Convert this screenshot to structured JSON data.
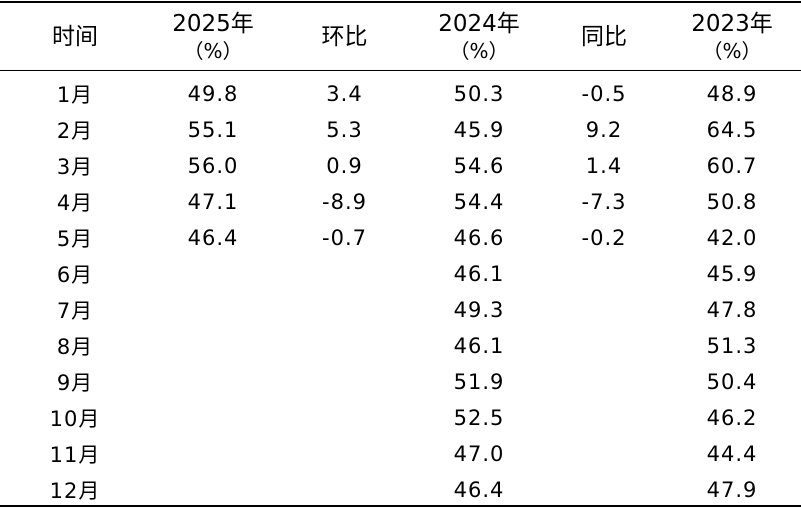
{
  "headers": {
    "month": "时间",
    "y2025": "2025年",
    "y2025_unit": "（%）",
    "mom": "环比",
    "y2024": "2024年",
    "y2024_unit": "（%）",
    "yoy": "同比",
    "y2023": "2023年",
    "y2023_unit": "（%）"
  },
  "rows": [
    {
      "month": "1月",
      "y2025": "49.8",
      "mom": "3.4",
      "y2024": "50.3",
      "yoy": "-0.5",
      "y2023": "48.9"
    },
    {
      "month": "2月",
      "y2025": "55.1",
      "mom": "5.3",
      "y2024": "45.9",
      "yoy": "9.2",
      "y2023": "64.5"
    },
    {
      "month": "3月",
      "y2025": "56.0",
      "mom": "0.9",
      "y2024": "54.6",
      "yoy": "1.4",
      "y2023": "60.7"
    },
    {
      "month": "4月",
      "y2025": "47.1",
      "mom": "-8.9",
      "y2024": "54.4",
      "yoy": "-7.3",
      "y2023": "50.8"
    },
    {
      "month": "5月",
      "y2025": "46.4",
      "mom": "-0.7",
      "y2024": "46.6",
      "yoy": "-0.2",
      "y2023": "42.0"
    },
    {
      "month": "6月",
      "y2025": "",
      "mom": "",
      "y2024": "46.1",
      "yoy": "",
      "y2023": "45.9"
    },
    {
      "month": "7月",
      "y2025": "",
      "mom": "",
      "y2024": "49.3",
      "yoy": "",
      "y2023": "47.8"
    },
    {
      "month": "8月",
      "y2025": "",
      "mom": "",
      "y2024": "46.1",
      "yoy": "",
      "y2023": "51.3"
    },
    {
      "month": "9月",
      "y2025": "",
      "mom": "",
      "y2024": "51.9",
      "yoy": "",
      "y2023": "50.4"
    },
    {
      "month": "10月",
      "y2025": "",
      "mom": "",
      "y2024": "52.5",
      "yoy": "",
      "y2023": "46.2"
    },
    {
      "month": "11月",
      "y2025": "",
      "mom": "",
      "y2024": "47.0",
      "yoy": "",
      "y2023": "44.4"
    },
    {
      "month": "12月",
      "y2025": "",
      "mom": "",
      "y2024": "46.4",
      "yoy": "",
      "y2023": "47.9"
    }
  ]
}
